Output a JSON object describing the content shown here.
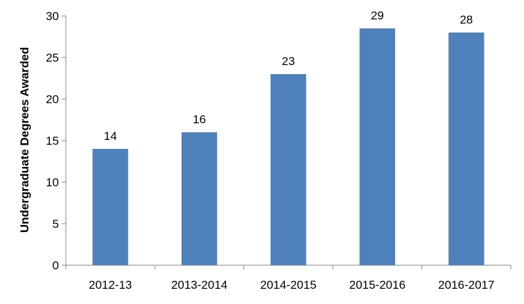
{
  "chart_data": {
    "type": "bar",
    "title": "",
    "xlabel": "",
    "ylabel": "Undergraduate Degrees Awarded",
    "categories": [
      "2012-13",
      "2013-2014",
      "2014-2015",
      "2015-2016",
      "2016-2017"
    ],
    "values": [
      14,
      16,
      23,
      28.5,
      28
    ],
    "data_labels": [
      "14",
      "16",
      "23",
      "29",
      "28"
    ],
    "ylim": [
      0,
      30
    ],
    "yticks": [
      0,
      5,
      10,
      15,
      20,
      25,
      30
    ],
    "grid": false,
    "legend": "none",
    "bar_color": "#4F81BD",
    "axis_color": "#868686"
  }
}
